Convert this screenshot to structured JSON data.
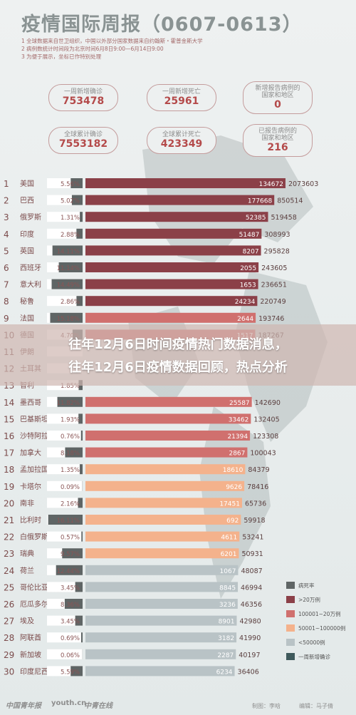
{
  "header": {
    "title": "疫情国际周报（0607-0613）",
    "notes": [
      "1 全球数据来自世卫组织，中国以外部分国家数据来自约翰斯・霍普金斯大学",
      "2 病例数统计时间段为北京时间6月8日9:00—6月14日9:00",
      "3 为便于展示，坐标已作特别处理"
    ]
  },
  "summary": [
    {
      "label": "一周新增确诊",
      "value": "753478"
    },
    {
      "label": "一周新增死亡",
      "value": "25961"
    },
    {
      "label": "新增报告病例的\n国家和地区",
      "value": "0"
    },
    {
      "label": "全球累计确诊",
      "value": "7553182"
    },
    {
      "label": "全球累计死亡",
      "value": "423349"
    },
    {
      "label": "已报告病例的\n国家和地区",
      "value": "216"
    }
  ],
  "banner": {
    "line1": "往年12月6日时间疫情热门数据消息，",
    "line2": "往年12月6日疫情数据回顾，热点分析"
  },
  "colors": {
    "tier_gt200k": "#8b4048",
    "tier_100k_200k": "#d0706e",
    "tier_50k_100k": "#f4b28c",
    "tier_lt50k": "#b9c3c6",
    "weekly_new": "#3f5a5c",
    "fatality": "#5f6565"
  },
  "legend": [
    {
      "label": "病死率",
      "color": "#5f6565"
    },
    {
      "label": ">20万例",
      "color": "#8b4048"
    },
    {
      "label": "100001~20万例",
      "color": "#d0706e"
    },
    {
      "label": "50001~100000例",
      "color": "#f4b28c"
    },
    {
      "label": "<50000例",
      "color": "#b9c3c6"
    },
    {
      "label": "一周新增确诊",
      "color": "#3f5a5c"
    }
  ],
  "chart_data": {
    "type": "bar",
    "categories": [
      "美国",
      "巴西",
      "俄罗斯",
      "印度",
      "英国",
      "西班牙",
      "意大利",
      "秘鲁",
      "法国",
      "德国",
      "伊朗",
      "土耳其",
      "智利",
      "墨西哥",
      "巴基斯坦",
      "沙特阿拉伯",
      "加拿大",
      "孟加拉国",
      "卡塔尔",
      "南非",
      "比利时",
      "白俄罗斯",
      "瑞典",
      "荷兰",
      "哥伦比亚",
      "厄瓜多尔",
      "埃及",
      "阿联酋",
      "新加坡",
      "印度尼西亚"
    ],
    "ranks": [
      "1",
      "2",
      "3",
      "4",
      "5",
      "6",
      "7",
      "8",
      "9",
      "10",
      "11",
      "12",
      "13",
      "14",
      "15",
      "16",
      "17",
      "18",
      "19",
      "20",
      "21",
      "22",
      "23",
      "24",
      "25",
      "26",
      "27",
      "28",
      "29",
      "30"
    ],
    "fatality_rate": [
      "5.56%",
      "5.02%",
      "1.31%",
      "2.88%",
      "14.11%",
      "11.14%",
      "14.49%",
      "2.86%",
      "15.18%",
      "4.70%",
      "",
      "",
      "1.85%",
      "11.82%",
      "1.93%",
      "0.76%",
      "8.18%",
      "1.35%",
      "0.09%",
      "2.16%",
      "16.11%",
      "0.57%",
      "9.57%",
      "12.44%",
      "3.45%",
      "8.36%",
      "3.45%",
      "0.69%",
      "0.06%",
      "5.59%"
    ],
    "weekly_new": [
      "134672",
      "177668",
      "52385",
      "51487",
      "8207",
      "2055",
      "1653",
      "24234",
      "2644",
      "1517",
      "",
      "",
      "",
      "25587",
      "33462",
      "21394",
      "2867",
      "18610",
      "9626",
      "17451",
      "692",
      "4611",
      "6201",
      "1067",
      "8845",
      "3236",
      "8901",
      "3182",
      "2287",
      "6234"
    ],
    "cumulative": [
      2073603,
      850514,
      519458,
      308993,
      295828,
      243605,
      236651,
      220749,
      193746,
      187267,
      "",
      "",
      "",
      142690,
      132405,
      123308,
      100043,
      84379,
      78416,
      65736,
      59918,
      53241,
      50931,
      48087,
      46994,
      46356,
      42980,
      41990,
      40197,
      36406
    ],
    "tiers": [
      "gt200k",
      "gt200k",
      "gt200k",
      "gt200k",
      "gt200k",
      "gt200k",
      "gt200k",
      "gt200k",
      "100k_200k",
      "100k_200k",
      "100k_200k",
      "100k_200k",
      "100k_200k",
      "100k_200k",
      "100k_200k",
      "100k_200k",
      "100k_200k",
      "50k_100k",
      "50k_100k",
      "50k_100k",
      "50k_100k",
      "50k_100k",
      "50k_100k",
      "lt50k",
      "lt50k",
      "lt50k",
      "lt50k",
      "lt50k",
      "lt50k",
      "lt50k"
    ]
  },
  "footer": {
    "logos": [
      "中国青年报",
      "youth.cn",
      "中青在线"
    ],
    "credits": [
      "制图：李晗",
      "编辑：马子倩"
    ]
  }
}
